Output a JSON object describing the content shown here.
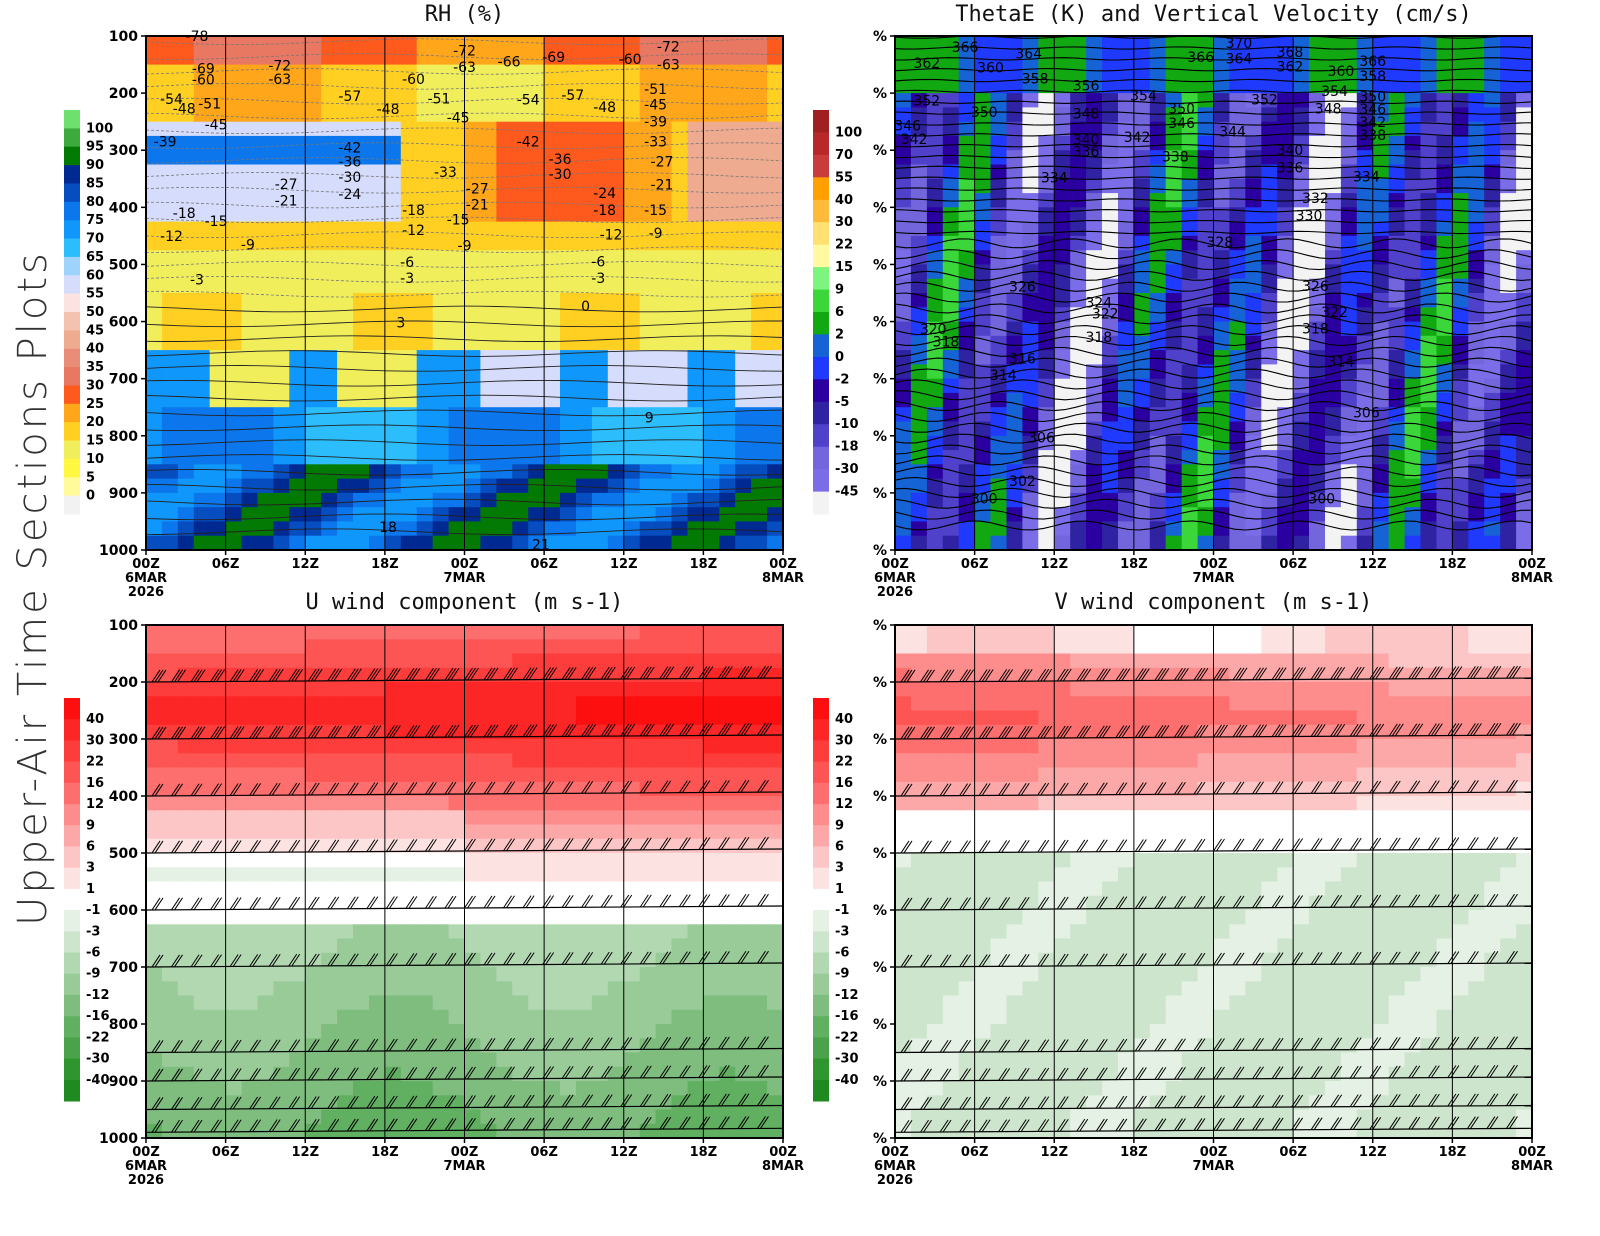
{
  "figure_title": "Upper-Air Time Sections Plots",
  "colors": {
    "frame": "#000000",
    "rh_scale": [
      "#f2f2f2",
      "#fffa9a",
      "#fff740",
      "#f1ee5c",
      "#ffd022",
      "#ffa61a",
      "#ff5a1e",
      "#e87862",
      "#ea8d78",
      "#eeab90",
      "#f3c3b0",
      "#fde2e2",
      "#d6dcfb",
      "#9ed4fb",
      "#2cbdfd",
      "#0f97fb",
      "#0c76ec",
      "#064dbf",
      "#002a91",
      "#037a03",
      "#3caa3c",
      "#6ee06e"
    ],
    "thetae_scale": [
      "#f3f3f3",
      "#7b6de8",
      "#7366dc",
      "#5041cb",
      "#2f22a3",
      "#2b00a0",
      "#1f3afc",
      "#1663d6",
      "#12a812",
      "#3ad63a",
      "#7df47d",
      "#fffaa0",
      "#ffe070",
      "#ffba3c",
      "#ff9f00",
      "#c83c3c",
      "#b92828",
      "#a02020"
    ],
    "wind_scale": [
      "#1f8a1f",
      "#2f962f",
      "#4aa34a",
      "#61b061",
      "#7ebd7e",
      "#98cb98",
      "#b2d8b2",
      "#cde5cd",
      "#e4f1e4",
      "#ffffff",
      "#fde2e2",
      "#fdc6c6",
      "#fda8a8",
      "#fd8c8c",
      "#fd6e6e",
      "#fd5454",
      "#fd3c3c",
      "#fd2626",
      "#fe0f0f"
    ]
  },
  "chart_data": [
    {
      "type": "heatmap",
      "title": "RH (%)",
      "xlabel": "",
      "ylabel": "",
      "x_ticks": [
        "00Z",
        "06Z",
        "12Z",
        "18Z",
        "00Z",
        "06Z",
        "12Z",
        "18Z",
        "00Z"
      ],
      "x_date_labels": [
        {
          "tick": 0,
          "lines": [
            "6MAR",
            "2026"
          ]
        },
        {
          "tick": 4,
          "lines": [
            "7MAR"
          ]
        },
        {
          "tick": 8,
          "lines": [
            "8MAR"
          ]
        }
      ],
      "y_ticks": [
        "100",
        "200",
        "300",
        "400",
        "500",
        "600",
        "700",
        "800",
        "900",
        "1000"
      ],
      "colorbar_labels": [
        "100",
        "95",
        "90",
        "85",
        "80",
        "75",
        "70",
        "65",
        "60",
        "55",
        "50",
        "45",
        "40",
        "35",
        "30",
        "25",
        "20",
        "15",
        "10",
        "5",
        "0"
      ],
      "contour_labels": [
        {
          "text": "-78",
          "t": 0.08,
          "p": 100
        },
        {
          "text": "-69",
          "t": 0.09,
          "p": 157
        },
        {
          "text": "-72",
          "t": 0.21,
          "p": 152
        },
        {
          "text": "-60",
          "t": 0.09,
          "p": 176
        },
        {
          "text": "-63",
          "t": 0.21,
          "p": 175
        },
        {
          "text": "-54",
          "t": 0.04,
          "p": 210
        },
        {
          "text": "-51",
          "t": 0.1,
          "p": 218
        },
        {
          "text": "-48",
          "t": 0.06,
          "p": 227
        },
        {
          "text": "-45",
          "t": 0.11,
          "p": 255
        },
        {
          "text": "-39",
          "t": 0.03,
          "p": 285
        },
        {
          "text": "-57",
          "t": 0.32,
          "p": 205
        },
        {
          "text": "-42",
          "t": 0.32,
          "p": 295
        },
        {
          "text": "-36",
          "t": 0.32,
          "p": 320
        },
        {
          "text": "-30",
          "t": 0.32,
          "p": 347
        },
        {
          "text": "-27",
          "t": 0.22,
          "p": 359
        },
        {
          "text": "-24",
          "t": 0.32,
          "p": 377
        },
        {
          "text": "-21",
          "t": 0.22,
          "p": 388
        },
        {
          "text": "-18",
          "t": 0.06,
          "p": 410
        },
        {
          "text": "-15",
          "t": 0.11,
          "p": 424
        },
        {
          "text": "-12",
          "t": 0.04,
          "p": 450
        },
        {
          "text": "-9",
          "t": 0.16,
          "p": 465
        },
        {
          "text": "-3",
          "t": 0.08,
          "p": 526
        },
        {
          "text": "-60",
          "t": 0.42,
          "p": 175
        },
        {
          "text": "-48",
          "t": 0.38,
          "p": 228
        },
        {
          "text": "-51",
          "t": 0.46,
          "p": 209
        },
        {
          "text": "-45",
          "t": 0.49,
          "p": 243
        },
        {
          "text": "-33",
          "t": 0.47,
          "p": 338
        },
        {
          "text": "-27",
          "t": 0.52,
          "p": 367
        },
        {
          "text": "-21",
          "t": 0.52,
          "p": 395
        },
        {
          "text": "-18",
          "t": 0.42,
          "p": 405
        },
        {
          "text": "-15",
          "t": 0.49,
          "p": 421
        },
        {
          "text": "-12",
          "t": 0.42,
          "p": 440
        },
        {
          "text": "-9",
          "t": 0.5,
          "p": 467
        },
        {
          "text": "-6",
          "t": 0.41,
          "p": 496
        },
        {
          "text": "-3",
          "t": 0.41,
          "p": 524
        },
        {
          "text": "3",
          "t": 0.4,
          "p": 602
        },
        {
          "text": "-72",
          "t": 0.5,
          "p": 125
        },
        {
          "text": "-63",
          "t": 0.5,
          "p": 154
        },
        {
          "text": "-66",
          "t": 0.57,
          "p": 145
        },
        {
          "text": "-69",
          "t": 0.64,
          "p": 137
        },
        {
          "text": "-54",
          "t": 0.6,
          "p": 211
        },
        {
          "text": "-57",
          "t": 0.67,
          "p": 203
        },
        {
          "text": "-42",
          "t": 0.6,
          "p": 285
        },
        {
          "text": "-36",
          "t": 0.65,
          "p": 315
        },
        {
          "text": "-30",
          "t": 0.65,
          "p": 342
        },
        {
          "text": "-24",
          "t": 0.72,
          "p": 375
        },
        {
          "text": "-18",
          "t": 0.72,
          "p": 405
        },
        {
          "text": "-12",
          "t": 0.73,
          "p": 448
        },
        {
          "text": "-6",
          "t": 0.71,
          "p": 495
        },
        {
          "text": "-3",
          "t": 0.71,
          "p": 524
        },
        {
          "text": "0",
          "t": 0.69,
          "p": 573
        },
        {
          "text": "-48",
          "t": 0.72,
          "p": 224
        },
        {
          "text": "-60",
          "t": 0.76,
          "p": 140
        },
        {
          "text": "-72",
          "t": 0.82,
          "p": 118
        },
        {
          "text": "-63",
          "t": 0.82,
          "p": 150
        },
        {
          "text": "-51",
          "t": 0.8,
          "p": 193
        },
        {
          "text": "-45",
          "t": 0.8,
          "p": 220
        },
        {
          "text": "-39",
          "t": 0.8,
          "p": 250
        },
        {
          "text": "-33",
          "t": 0.8,
          "p": 285
        },
        {
          "text": "-27",
          "t": 0.81,
          "p": 320
        },
        {
          "text": "-21",
          "t": 0.81,
          "p": 360
        },
        {
          "text": "-15",
          "t": 0.8,
          "p": 405
        },
        {
          "text": "-9",
          "t": 0.8,
          "p": 445
        },
        {
          "text": "9",
          "t": 0.79,
          "p": 768
        },
        {
          "text": "18",
          "t": 0.38,
          "p": 960
        },
        {
          "text": "21",
          "t": 0.62,
          "p": 990
        }
      ]
    },
    {
      "type": "heatmap",
      "title": "ThetaE (K) and Vertical Velocity (cm/s)",
      "x_ticks": [
        "00Z",
        "06Z",
        "12Z",
        "18Z",
        "00Z",
        "06Z",
        "12Z",
        "18Z",
        "00Z"
      ],
      "x_date_labels": [
        {
          "tick": 0,
          "lines": [
            "6MAR",
            "2026"
          ]
        },
        {
          "tick": 4,
          "lines": [
            "7MAR"
          ]
        },
        {
          "tick": 8,
          "lines": [
            "8MAR"
          ]
        }
      ],
      "y_ticks": [
        "%",
        "%",
        "%",
        "%",
        "%",
        "%",
        "%",
        "%",
        "%",
        "%"
      ],
      "colorbar_labels": [
        "100",
        "70",
        "55",
        "40",
        "30",
        "22",
        "15",
        "9",
        "6",
        "2",
        "0",
        "-2",
        "-5",
        "-10",
        "-18",
        "-30",
        "-45"
      ],
      "contour_labels": [
        {
          "text": "366",
          "t": 0.11,
          "p": 119
        },
        {
          "text": "362",
          "t": 0.05,
          "p": 147
        },
        {
          "text": "360",
          "t": 0.15,
          "p": 155
        },
        {
          "text": "364",
          "t": 0.21,
          "p": 131
        },
        {
          "text": "358",
          "t": 0.22,
          "p": 174
        },
        {
          "text": "356",
          "t": 0.3,
          "p": 187
        },
        {
          "text": "352",
          "t": 0.05,
          "p": 213
        },
        {
          "text": "350",
          "t": 0.14,
          "p": 233
        },
        {
          "text": "346",
          "t": 0.02,
          "p": 257
        },
        {
          "text": "342",
          "t": 0.03,
          "p": 280
        },
        {
          "text": "348",
          "t": 0.3,
          "p": 236
        },
        {
          "text": "354",
          "t": 0.39,
          "p": 204
        },
        {
          "text": "340",
          "t": 0.3,
          "p": 281
        },
        {
          "text": "336",
          "t": 0.3,
          "p": 302
        },
        {
          "text": "342",
          "t": 0.38,
          "p": 277
        },
        {
          "text": "338",
          "t": 0.44,
          "p": 311
        },
        {
          "text": "334",
          "t": 0.25,
          "p": 348
        },
        {
          "text": "350",
          "t": 0.45,
          "p": 227
        },
        {
          "text": "346",
          "t": 0.45,
          "p": 252
        },
        {
          "text": "366",
          "t": 0.48,
          "p": 137
        },
        {
          "text": "370",
          "t": 0.54,
          "p": 112
        },
        {
          "text": "364",
          "t": 0.54,
          "p": 139
        },
        {
          "text": "352",
          "t": 0.58,
          "p": 211
        },
        {
          "text": "344",
          "t": 0.53,
          "p": 267
        },
        {
          "text": "368",
          "t": 0.62,
          "p": 128
        },
        {
          "text": "362",
          "t": 0.62,
          "p": 153
        },
        {
          "text": "340",
          "t": 0.62,
          "p": 300
        },
        {
          "text": "336",
          "t": 0.62,
          "p": 330
        },
        {
          "text": "360",
          "t": 0.7,
          "p": 161
        },
        {
          "text": "354",
          "t": 0.69,
          "p": 196
        },
        {
          "text": "348",
          "t": 0.68,
          "p": 227
        },
        {
          "text": "366",
          "t": 0.75,
          "p": 144
        },
        {
          "text": "358",
          "t": 0.75,
          "p": 170
        },
        {
          "text": "350",
          "t": 0.75,
          "p": 206
        },
        {
          "text": "346",
          "t": 0.75,
          "p": 228
        },
        {
          "text": "342",
          "t": 0.75,
          "p": 251
        },
        {
          "text": "338",
          "t": 0.75,
          "p": 273
        },
        {
          "text": "334",
          "t": 0.74,
          "p": 346
        },
        {
          "text": "332",
          "t": 0.66,
          "p": 384
        },
        {
          "text": "330",
          "t": 0.65,
          "p": 414
        },
        {
          "text": "328",
          "t": 0.51,
          "p": 461
        },
        {
          "text": "326",
          "t": 0.2,
          "p": 539
        },
        {
          "text": "326",
          "t": 0.66,
          "p": 538
        },
        {
          "text": "324",
          "t": 0.32,
          "p": 567
        },
        {
          "text": "322",
          "t": 0.33,
          "p": 586
        },
        {
          "text": "322",
          "t": 0.69,
          "p": 583
        },
        {
          "text": "320",
          "t": 0.06,
          "p": 613
        },
        {
          "text": "318",
          "t": 0.08,
          "p": 635
        },
        {
          "text": "318",
          "t": 0.32,
          "p": 627
        },
        {
          "text": "318",
          "t": 0.66,
          "p": 612
        },
        {
          "text": "316",
          "t": 0.2,
          "p": 665
        },
        {
          "text": "314",
          "t": 0.17,
          "p": 694
        },
        {
          "text": "314",
          "t": 0.7,
          "p": 670
        },
        {
          "text": "306",
          "t": 0.23,
          "p": 803
        },
        {
          "text": "306",
          "t": 0.74,
          "p": 759
        },
        {
          "text": "302",
          "t": 0.2,
          "p": 879
        },
        {
          "text": "300",
          "t": 0.14,
          "p": 910
        },
        {
          "text": "300",
          "t": 0.67,
          "p": 910
        }
      ]
    },
    {
      "type": "heatmap",
      "title": "U wind component (m s-1)",
      "x_ticks": [
        "00Z",
        "06Z",
        "12Z",
        "18Z",
        "00Z",
        "06Z",
        "12Z",
        "18Z",
        "00Z"
      ],
      "x_date_labels": [
        {
          "tick": 0,
          "lines": [
            "6MAR",
            "2026"
          ]
        },
        {
          "tick": 4,
          "lines": [
            "7MAR"
          ]
        },
        {
          "tick": 8,
          "lines": [
            "8MAR"
          ]
        }
      ],
      "y_ticks": [
        "100",
        "200",
        "300",
        "400",
        "500",
        "600",
        "700",
        "800",
        "900",
        "1000"
      ],
      "colorbar_labels": [
        "40",
        "30",
        "22",
        "16",
        "12",
        "9",
        "6",
        "3",
        "1",
        "-1",
        "-3",
        "-6",
        "-9",
        "-12",
        "-16",
        "-22",
        "-30",
        "-40"
      ],
      "barb_levels": [
        200,
        300,
        400,
        500,
        600,
        700,
        850,
        900,
        950,
        1000
      ]
    },
    {
      "type": "heatmap",
      "title": "V wind component (m s-1)",
      "x_ticks": [
        "00Z",
        "06Z",
        "12Z",
        "18Z",
        "00Z",
        "06Z",
        "12Z",
        "18Z",
        "00Z"
      ],
      "x_date_labels": [
        {
          "tick": 0,
          "lines": [
            "6MAR",
            "2026"
          ]
        },
        {
          "tick": 4,
          "lines": [
            "7MAR"
          ]
        },
        {
          "tick": 8,
          "lines": [
            "8MAR"
          ]
        }
      ],
      "y_ticks": [
        "%",
        "%",
        "%",
        "%",
        "%",
        "%",
        "%",
        "%",
        "%",
        "%"
      ],
      "colorbar_labels": [
        "40",
        "30",
        "22",
        "16",
        "12",
        "9",
        "6",
        "3",
        "1",
        "-1",
        "-3",
        "-6",
        "-9",
        "-12",
        "-16",
        "-22",
        "-30",
        "-40"
      ],
      "barb_levels": [
        200,
        300,
        400,
        500,
        600,
        700,
        850,
        900,
        950,
        1000
      ]
    }
  ]
}
